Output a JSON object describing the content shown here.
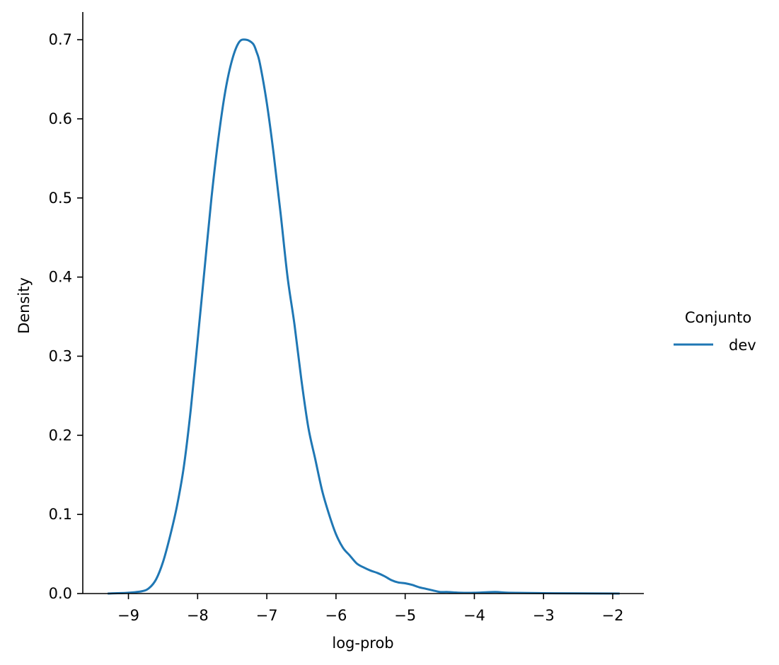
{
  "chart_data": {
    "type": "line",
    "title": "",
    "xlabel": "log-prob",
    "ylabel": "Density",
    "xlim": [
      -9.66,
      -1.55
    ],
    "ylim": [
      0.0,
      0.735
    ],
    "xticks": [
      -9,
      -8,
      -7,
      -6,
      -5,
      -4,
      -3,
      -2
    ],
    "xtick_labels": [
      "−9",
      "−8",
      "−7",
      "−6",
      "−5",
      "−4",
      "−3",
      "−2"
    ],
    "yticks": [
      0.0,
      0.1,
      0.2,
      0.3,
      0.4,
      0.5,
      0.6,
      0.7
    ],
    "ytick_labels": [
      "0.0",
      "0.1",
      "0.2",
      "0.3",
      "0.4",
      "0.5",
      "0.6",
      "0.7"
    ],
    "grid": false,
    "legend": {
      "title": "Conjunto",
      "placement": "right"
    },
    "series": [
      {
        "name": "dev",
        "color": "#1f77b4",
        "x": [
          -9.3,
          -9.0,
          -8.8,
          -8.7,
          -8.6,
          -8.5,
          -8.4,
          -8.3,
          -8.2,
          -8.1,
          -8.0,
          -7.9,
          -7.8,
          -7.7,
          -7.6,
          -7.5,
          -7.4,
          -7.3,
          -7.2,
          -7.15,
          -7.1,
          -7.0,
          -6.9,
          -6.8,
          -6.7,
          -6.6,
          -6.5,
          -6.4,
          -6.3,
          -6.2,
          -6.1,
          -6.0,
          -5.9,
          -5.8,
          -5.7,
          -5.6,
          -5.5,
          -5.4,
          -5.3,
          -5.2,
          -5.1,
          -5.0,
          -4.9,
          -4.8,
          -4.7,
          -4.6,
          -4.5,
          -4.4,
          -4.3,
          -4.2,
          -4.0,
          -3.7,
          -3.5,
          -3.0,
          -2.5,
          -1.9
        ],
        "y": [
          0.0,
          0.001,
          0.003,
          0.007,
          0.018,
          0.04,
          0.072,
          0.11,
          0.16,
          0.232,
          0.32,
          0.41,
          0.5,
          0.575,
          0.635,
          0.675,
          0.697,
          0.7,
          0.695,
          0.685,
          0.67,
          0.62,
          0.555,
          0.48,
          0.4,
          0.34,
          0.27,
          0.21,
          0.17,
          0.13,
          0.1,
          0.075,
          0.058,
          0.048,
          0.038,
          0.033,
          0.029,
          0.026,
          0.022,
          0.017,
          0.014,
          0.013,
          0.011,
          0.008,
          0.006,
          0.004,
          0.002,
          0.002,
          0.0015,
          0.001,
          0.001,
          0.002,
          0.001,
          0.0005,
          0.0002,
          0.0
        ]
      }
    ]
  }
}
